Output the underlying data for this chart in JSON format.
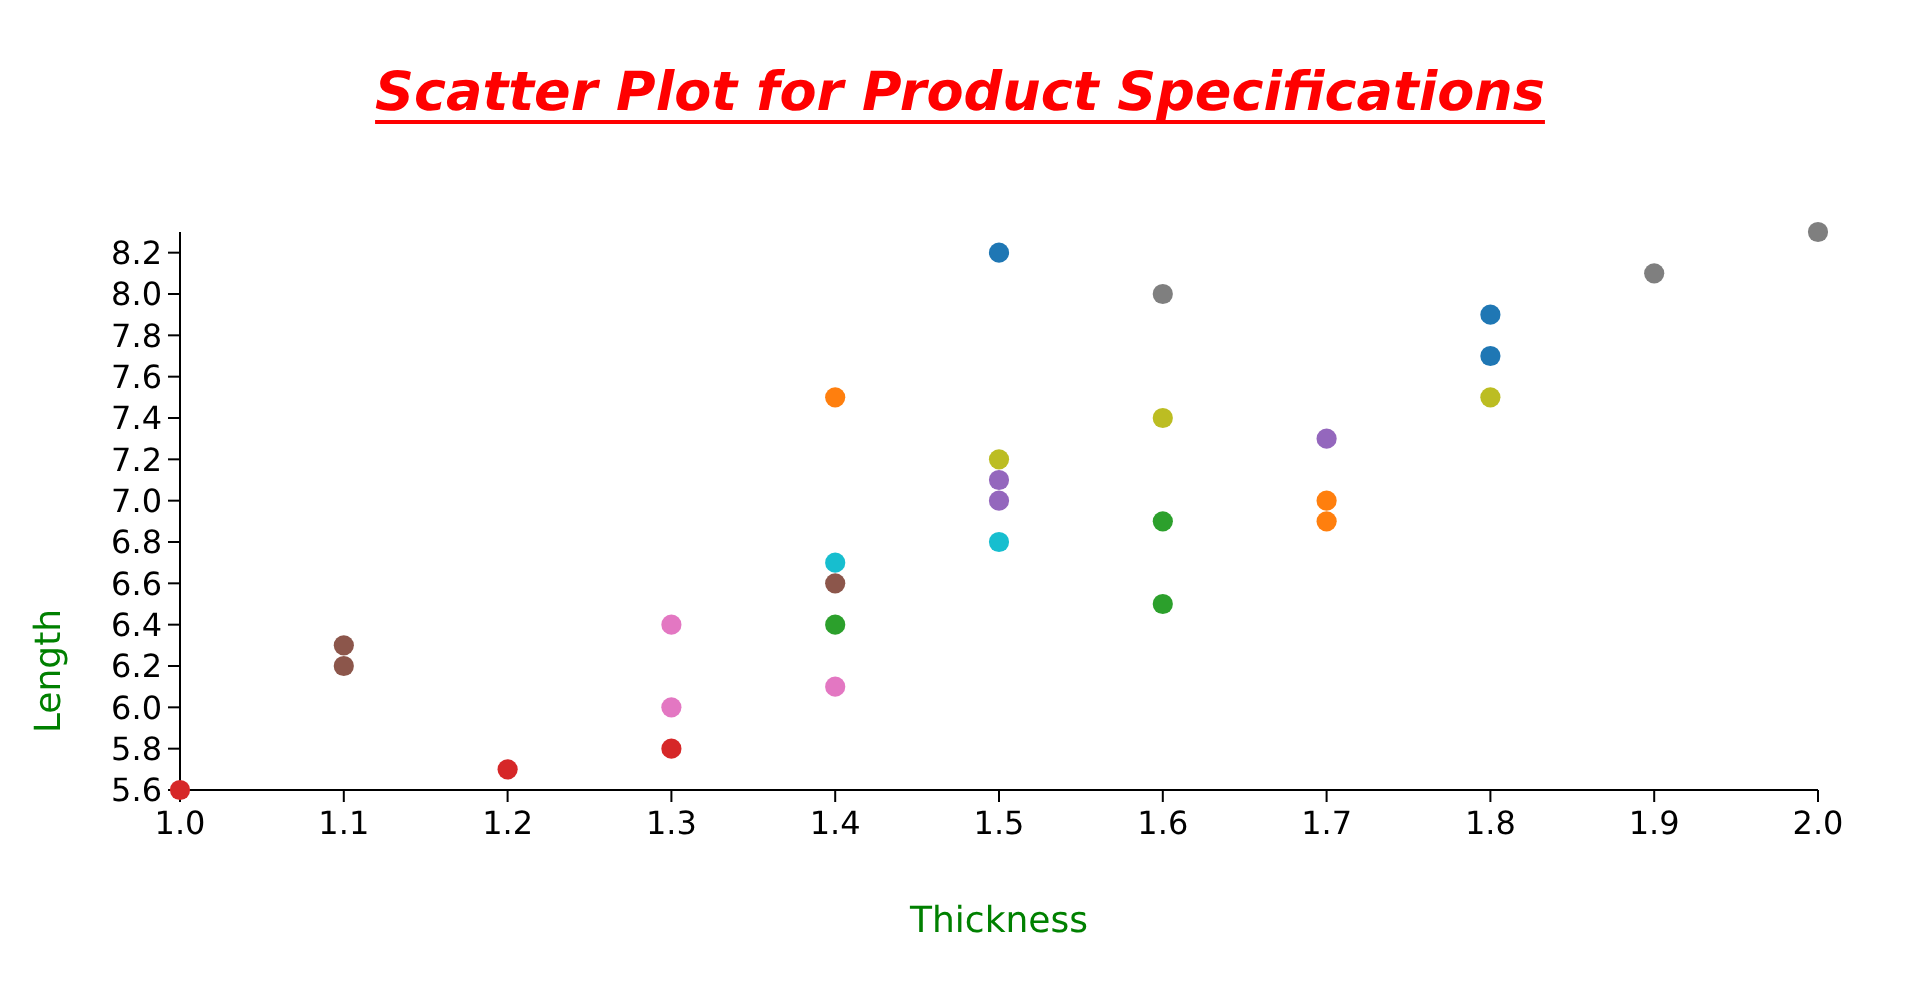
{
  "chart_data": {
    "type": "scatter",
    "title": "Scatter Plot for Product Specifications",
    "xlabel": "Thickness",
    "ylabel": "Length",
    "x": [
      1.0,
      1.1,
      1.1,
      1.2,
      1.3,
      1.3,
      1.3,
      1.4,
      1.4,
      1.4,
      1.4,
      1.4,
      1.5,
      1.5,
      1.5,
      1.5,
      1.5,
      1.6,
      1.6,
      1.6,
      1.6,
      1.7,
      1.7,
      1.7,
      1.8,
      1.8,
      1.8,
      1.9,
      2.0
    ],
    "values": [
      5.6,
      6.3,
      6.2,
      5.7,
      6.4,
      6.0,
      5.8,
      7.5,
      6.7,
      6.6,
      6.4,
      6.1,
      8.2,
      7.2,
      7.1,
      7.0,
      6.8,
      8.0,
      7.4,
      6.9,
      6.5,
      7.3,
      7.0,
      6.9,
      7.9,
      7.7,
      7.5,
      8.1,
      8.3
    ],
    "colors": [
      "#d62728",
      "#8c564b",
      "#8c564b",
      "#d62728",
      "#e377c2",
      "#e377c2",
      "#d62728",
      "#ff7f0e",
      "#17becf",
      "#8c564b",
      "#2ca02c",
      "#e377c2",
      "#1f77b4",
      "#bcbd22",
      "#9467bd",
      "#9467bd",
      "#17becf",
      "#7f7f7f",
      "#bcbd22",
      "#2ca02c",
      "#2ca02c",
      "#9467bd",
      "#ff7f0e",
      "#ff7f0e",
      "#1f77b4",
      "#1f77b4",
      "#bcbd22",
      "#7f7f7f",
      "#7f7f7f"
    ],
    "xlim": [
      1.0,
      2.0
    ],
    "ylim": [
      5.6,
      8.3
    ],
    "xticks": [
      {
        "value": 1.0,
        "label": "1.0"
      },
      {
        "value": 1.1,
        "label": "1.1"
      },
      {
        "value": 1.2,
        "label": "1.2"
      },
      {
        "value": 1.3,
        "label": "1.3"
      },
      {
        "value": 1.4,
        "label": "1.4"
      },
      {
        "value": 1.5,
        "label": "1.5"
      },
      {
        "value": 1.6,
        "label": "1.6"
      },
      {
        "value": 1.7,
        "label": "1.7"
      },
      {
        "value": 1.8,
        "label": "1.8"
      },
      {
        "value": 1.9,
        "label": "1.9"
      },
      {
        "value": 2.0,
        "label": "2.0"
      }
    ],
    "yticks": [
      {
        "value": 5.6,
        "label": "5.6"
      },
      {
        "value": 5.8,
        "label": "5.8"
      },
      {
        "value": 6.0,
        "label": "6.0"
      },
      {
        "value": 6.2,
        "label": "6.2"
      },
      {
        "value": 6.4,
        "label": "6.4"
      },
      {
        "value": 6.6,
        "label": "6.6"
      },
      {
        "value": 6.8,
        "label": "6.8"
      },
      {
        "value": 7.0,
        "label": "7.0"
      },
      {
        "value": 7.2,
        "label": "7.2"
      },
      {
        "value": 7.4,
        "label": "7.4"
      },
      {
        "value": 7.6,
        "label": "7.6"
      },
      {
        "value": 7.8,
        "label": "7.8"
      },
      {
        "value": 8.0,
        "label": "8.0"
      },
      {
        "value": 8.2,
        "label": "8.2"
      }
    ],
    "marker": "circle",
    "grid": false
  }
}
